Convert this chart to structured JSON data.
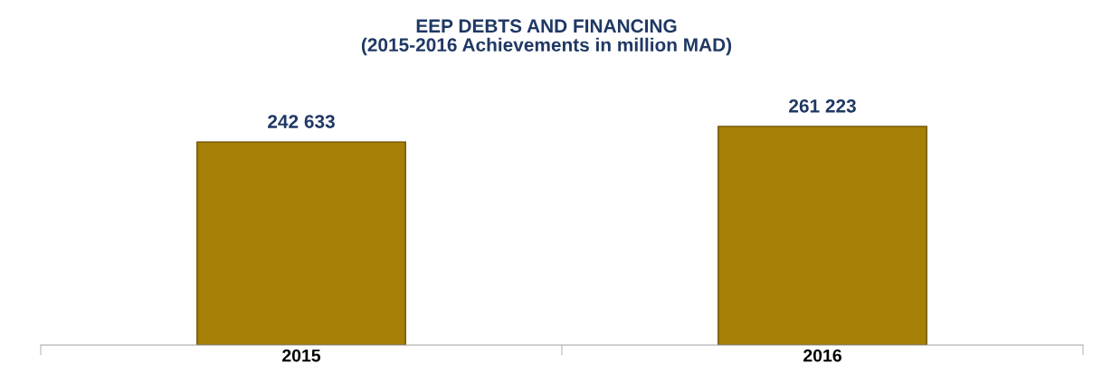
{
  "chart_data": {
    "type": "bar",
    "title": "EEP DEBTS AND FINANCING\n(2015-2016 Achievements in million MAD)",
    "categories": [
      "2015",
      "2016"
    ],
    "values": [
      242633,
      261223
    ],
    "value_labels": [
      "242 633",
      "261 223"
    ],
    "color": "#a67f06",
    "grid": false,
    "legend": false
  }
}
